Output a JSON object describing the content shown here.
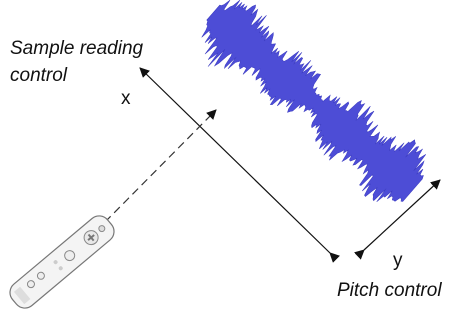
{
  "labels": {
    "sample_reading": [
      "Sample reading",
      "control"
    ],
    "x_axis": "x",
    "y_axis": "y",
    "pitch": "Pitch control"
  }
}
